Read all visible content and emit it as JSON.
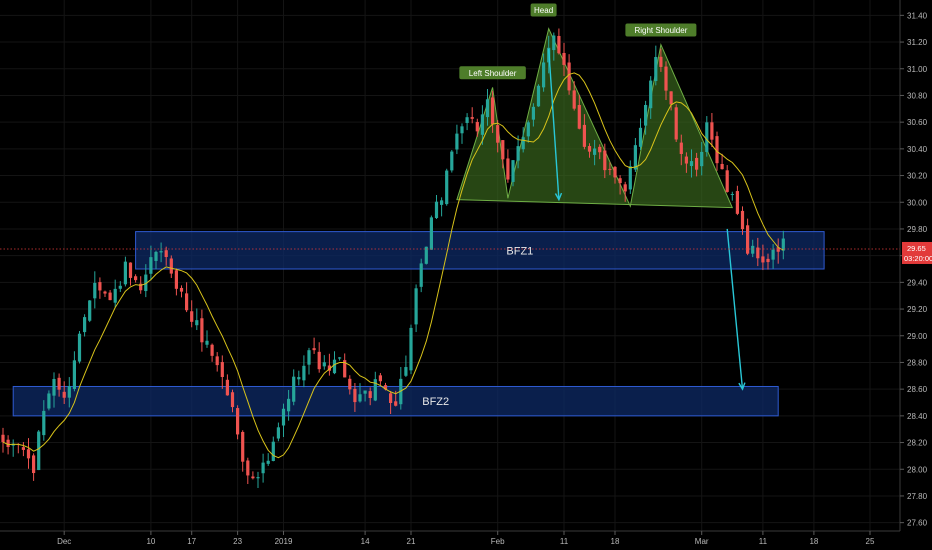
{
  "chart_data": {
    "type": "candlestick",
    "colors": {
      "background": "#000000",
      "up": "#26a69a",
      "down": "#ef5350",
      "ma": "#d8c31a",
      "zone_fill": "#0d2a66",
      "zone_stroke": "#2f5bd3",
      "pattern_fill": "#3c6b1e",
      "pattern_stroke": "#6fae45",
      "arrow": "#29c7d6",
      "label_bg": "#4e7d2a",
      "price_tag": "#e23a3a",
      "price_line": "#e23a3a",
      "axis_text": "#b9b9b9"
    },
    "ylim": [
      27.5,
      31.5
    ],
    "y_ticks": [
      "31.40",
      "31.20",
      "31.00",
      "30.80",
      "30.60",
      "30.40",
      "30.20",
      "30.00",
      "29.80",
      "29.60",
      "29.40",
      "29.20",
      "29.00",
      "28.80",
      "28.60",
      "28.40",
      "28.20",
      "28.00",
      "27.80",
      "27.60"
    ],
    "x_ticks": [
      {
        "label": "Dec",
        "bar": 12
      },
      {
        "label": "10",
        "bar": 29
      },
      {
        "label": "17",
        "bar": 37
      },
      {
        "label": "23",
        "bar": 46
      },
      {
        "label": "2019",
        "bar": 55
      },
      {
        "label": "14",
        "bar": 71
      },
      {
        "label": "21",
        "bar": 80
      },
      {
        "label": "Feb",
        "bar": 97
      },
      {
        "label": "11",
        "bar": 110
      },
      {
        "label": "18",
        "bar": 120
      },
      {
        "label": "Mar",
        "bar": 137
      },
      {
        "label": "11",
        "bar": 149
      },
      {
        "label": "18",
        "bar": 159
      },
      {
        "label": "25",
        "bar": 170
      }
    ],
    "x_range": [
      0,
      175
    ],
    "ohlc_anchors": [
      [
        0,
        28.15
      ],
      [
        3,
        28.2
      ],
      [
        6,
        28.0
      ],
      [
        8,
        28.45
      ],
      [
        10,
        28.7
      ],
      [
        12,
        28.5
      ],
      [
        15,
        29.0
      ],
      [
        18,
        29.45
      ],
      [
        21,
        29.25
      ],
      [
        24,
        29.5
      ],
      [
        27,
        29.3
      ],
      [
        30,
        29.65
      ],
      [
        33,
        29.5
      ],
      [
        36,
        29.2
      ],
      [
        39,
        29.0
      ],
      [
        42,
        28.8
      ],
      [
        45,
        28.45
      ],
      [
        47,
        28.1
      ],
      [
        49,
        27.9
      ],
      [
        52,
        28.05
      ],
      [
        54,
        28.3
      ],
      [
        56,
        28.55
      ],
      [
        58,
        28.75
      ],
      [
        60,
        28.9
      ],
      [
        63,
        28.75
      ],
      [
        66,
        28.8
      ],
      [
        68,
        28.55
      ],
      [
        71,
        28.55
      ],
      [
        74,
        28.65
      ],
      [
        77,
        28.5
      ],
      [
        79,
        28.8
      ],
      [
        81,
        29.3
      ],
      [
        84,
        29.85
      ],
      [
        86,
        30.05
      ],
      [
        88,
        30.4
      ],
      [
        90,
        30.6
      ],
      [
        93,
        30.55
      ],
      [
        95,
        30.8
      ],
      [
        97,
        30.4
      ],
      [
        99,
        30.15
      ],
      [
        101,
        30.45
      ],
      [
        104,
        30.7
      ],
      [
        106,
        31.0
      ],
      [
        108,
        31.25
      ],
      [
        110,
        31.05
      ],
      [
        112,
        30.7
      ],
      [
        114,
        30.45
      ],
      [
        117,
        30.35
      ],
      [
        119,
        30.2
      ],
      [
        122,
        30.05
      ],
      [
        124,
        30.45
      ],
      [
        126,
        30.75
      ],
      [
        128,
        31.1
      ],
      [
        130,
        30.85
      ],
      [
        132,
        30.5
      ],
      [
        134,
        30.3
      ],
      [
        136,
        30.2
      ],
      [
        138,
        30.55
      ],
      [
        140,
        30.35
      ],
      [
        142,
        30.1
      ],
      [
        144,
        29.95
      ],
      [
        146,
        29.65
      ],
      [
        148,
        29.6
      ],
      [
        150,
        29.55
      ],
      [
        153,
        29.7
      ]
    ],
    "candle_count": 154,
    "zones": [
      {
        "name": "BFZ1",
        "label": "BFZ1",
        "x_start": 26,
        "x_end": 161,
        "y_top": 29.78,
        "y_bottom": 29.5
      },
      {
        "name": "BFZ2",
        "label": "BFZ2",
        "x_start": 2,
        "x_end": 152,
        "y_top": 28.62,
        "y_bottom": 28.4
      }
    ],
    "pattern": {
      "points": [
        [
          89,
          30.02
        ],
        [
          96,
          30.86
        ],
        [
          99,
          30.03
        ],
        [
          107,
          31.3
        ],
        [
          123,
          29.97
        ],
        [
          129,
          31.18
        ],
        [
          143,
          29.96
        ]
      ],
      "labels": [
        {
          "text": "Left Shoulder",
          "bar": 96,
          "price": 30.97
        },
        {
          "text": "Head",
          "bar": 106,
          "price": 31.44
        },
        {
          "text": "Right Shoulder",
          "bar": 129,
          "price": 31.29
        }
      ]
    },
    "arrows": [
      {
        "from": [
          107,
          31.15
        ],
        "to": [
          109,
          30.02
        ]
      },
      {
        "from": [
          142,
          29.8
        ],
        "to": [
          145,
          28.6
        ]
      }
    ],
    "last_price": {
      "value": "29.65",
      "price": 29.65,
      "countdown": "03:20:00"
    }
  }
}
